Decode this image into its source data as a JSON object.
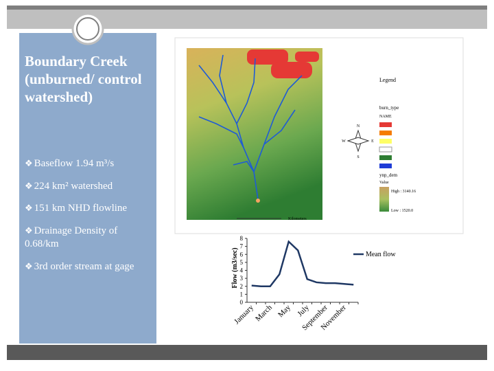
{
  "slide": {
    "title": "Boundary Creek (unburned/ control watershed)",
    "bullet": "❖",
    "bullets": [
      "Baseflow 1.94 m³/s",
      "224 km² watershed",
      "151 km NHD flowline",
      "Drainage Density of 0.68/km",
      "3rd order stream at gage"
    ]
  },
  "map": {
    "legend_title": "Legend",
    "burn_title": "burn_type",
    "name_label": "NAME",
    "dem_title": "ynp_dem",
    "value_label": "Value",
    "high": "High : 3140.16",
    "low": "Low : 1520.0",
    "scale": "Kilometers",
    "north": "N",
    "south": "S",
    "east": "E",
    "west": "W"
  },
  "chart_data": {
    "type": "line",
    "y_label": "Flow (m3/sec)",
    "categories": [
      "January",
      null,
      "March",
      null,
      "May",
      null,
      "July",
      null,
      "September",
      null,
      "November",
      null
    ],
    "series": [
      {
        "name": "Mean flow",
        "color": "#1f3864",
        "values": [
          2.1,
          2.0,
          2.0,
          3.5,
          7.6,
          6.5,
          2.9,
          2.5,
          2.4,
          2.4,
          2.3,
          2.2
        ]
      }
    ],
    "ylim": [
      0,
      8
    ],
    "yticks": [
      0,
      1,
      2,
      3,
      4,
      5,
      6,
      7,
      8
    ]
  }
}
